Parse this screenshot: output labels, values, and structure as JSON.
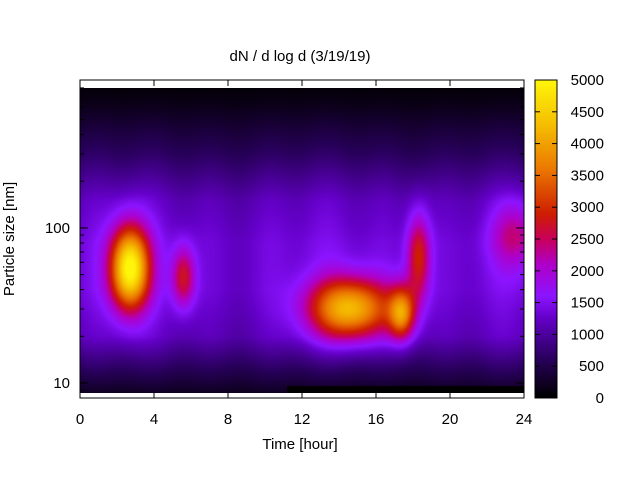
{
  "chart_data": {
    "type": "heatmap",
    "title": "dN / d log d (3/19/19)",
    "xlabel": "Time [hour]",
    "ylabel": "Particle size [nm]",
    "x_ticks": [
      "0",
      "4",
      "8",
      "12",
      "16",
      "20",
      "24"
    ],
    "xlim": [
      0,
      24
    ],
    "y_scale": "log",
    "y_ticks": [
      "10",
      "100"
    ],
    "ylim": [
      8,
      900
    ],
    "colorbar": {
      "min": 0,
      "max": 5000,
      "ticks": [
        "0",
        "500",
        "1000",
        "1500",
        "2000",
        "2500",
        "3000",
        "3500",
        "4000",
        "4500",
        "5000"
      ],
      "palette": "black-purple-red-orange-yellow"
    },
    "z_model": {
      "background": [
        {
          "d": 8,
          "z": 150
        },
        {
          "d": 12,
          "z": 650
        },
        {
          "d": 20,
          "z": 1300
        },
        {
          "d": 40,
          "z": 1500
        },
        {
          "d": 80,
          "z": 1500
        },
        {
          "d": 150,
          "z": 1300
        },
        {
          "d": 300,
          "z": 700
        },
        {
          "d": 600,
          "z": 200
        },
        {
          "d": 900,
          "z": 0
        }
      ],
      "modes": [
        {
          "hour": 2.7,
          "d": 55,
          "peak": 3800,
          "hour_width": 0.75,
          "log_d_width": 0.19
        },
        {
          "hour": 5.6,
          "d": 48,
          "peak": 1500,
          "hour_width": 0.45,
          "log_d_width": 0.14
        },
        {
          "hour": 14.6,
          "d": 30,
          "peak": 3000,
          "hour_width": 1.6,
          "log_d_width": 0.14
        },
        {
          "hour": 17.4,
          "d": 28,
          "peak": 2300,
          "hour_width": 0.5,
          "log_d_width": 0.12
        },
        {
          "hour": 18.3,
          "d": 65,
          "peak": 1700,
          "hour_width": 0.45,
          "log_d_width": 0.2
        },
        {
          "hour": 23.5,
          "d": 90,
          "peak": 1000,
          "hour_width": 0.9,
          "log_d_width": 0.15
        }
      ],
      "missing_data": [
        {
          "hour_start": 11.2,
          "hour_end": 24,
          "d_max": 9.5
        }
      ]
    },
    "grid": false,
    "legend": "colorbar right"
  }
}
